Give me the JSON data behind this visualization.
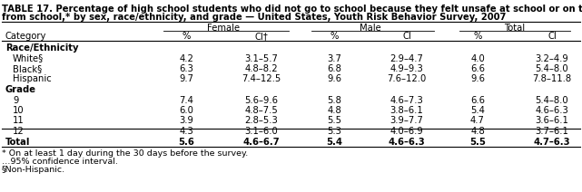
{
  "title_line1": "TABLE 17. Percentage of high school students who did not go to school because they felt unsafe at school or on their way to or",
  "title_line2": "from school,* by sex, race/ethnicity, and grade — United States, Youth Risk Behavior Survey, 2007",
  "col_headers": [
    "Female",
    "Male",
    "Total"
  ],
  "sub_headers": [
    "Category",
    "%",
    "CI†",
    "%",
    "CI",
    "%",
    "CI"
  ],
  "sections": [
    {
      "section_title": "Race/Ethnicity",
      "rows": [
        [
          "White§",
          "4.2",
          "3.1–5.7",
          "3.7",
          "2.9–4.7",
          "4.0",
          "3.2–4.9"
        ],
        [
          "Black§",
          "6.3",
          "4.8–8.2",
          "6.8",
          "4.9–9.3",
          "6.6",
          "5.4–8.0"
        ],
        [
          "Hispanic",
          "9.7",
          "7.4–12.5",
          "9.6",
          "7.6–12.0",
          "9.6",
          "7.8–11.8"
        ]
      ]
    },
    {
      "section_title": "Grade",
      "rows": [
        [
          "9",
          "7.4",
          "5.6–9.6",
          "5.8",
          "4.6–7.3",
          "6.6",
          "5.4–8.0"
        ],
        [
          "10",
          "6.0",
          "4.8–7.5",
          "4.8",
          "3.8–6.1",
          "5.4",
          "4.6–6.3"
        ],
        [
          "11",
          "3.9",
          "2.8–5.3",
          "5.5",
          "3.9–7.7",
          "4.7",
          "3.6–6.1"
        ],
        [
          "12",
          "4.3",
          "3.1–6.0",
          "5.3",
          "4.0–6.9",
          "4.8",
          "3.7–6.1"
        ]
      ]
    }
  ],
  "total_row": [
    "Total",
    "5.6",
    "4.6–6.7",
    "5.4",
    "4.6–6.3",
    "5.5",
    "4.7–6.3"
  ],
  "footnote1": "* On at least 1 day during the 30 days before the survey.",
  "footnote2": "…95% confidence interval.",
  "footnote3": "§Non-Hispanic.",
  "bg_color": "#FFFFFF",
  "text_color": "#000000",
  "fs_title": 7.2,
  "fs_body": 7.2,
  "fs_fn": 6.8
}
